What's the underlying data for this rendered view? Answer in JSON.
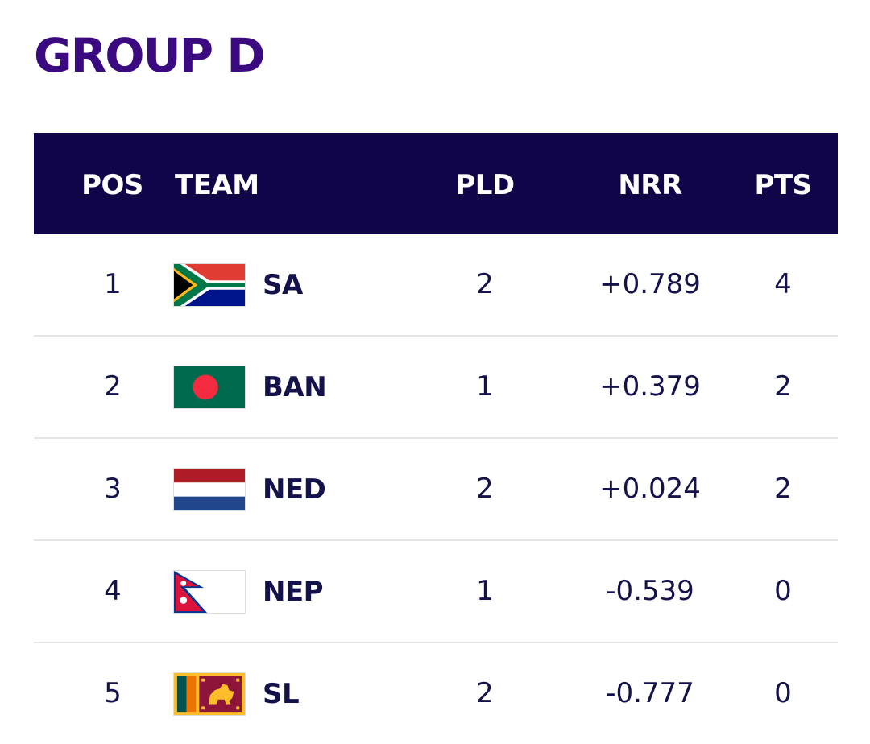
{
  "title": "GROUP D",
  "headers": {
    "pos": "POS",
    "team": "TEAM",
    "pld": "PLD",
    "nrr": "NRR",
    "pts": "PTS"
  },
  "rows": [
    {
      "pos": "1",
      "team": "SA",
      "flag": "south-africa-flag-icon",
      "pld": "2",
      "nrr": "+0.789",
      "pts": "4"
    },
    {
      "pos": "2",
      "team": "BAN",
      "flag": "bangladesh-flag-icon",
      "pld": "1",
      "nrr": "+0.379",
      "pts": "2"
    },
    {
      "pos": "3",
      "team": "NED",
      "flag": "netherlands-flag-icon",
      "pld": "2",
      "nrr": "+0.024",
      "pts": "2"
    },
    {
      "pos": "4",
      "team": "NEP",
      "flag": "nepal-flag-icon",
      "pld": "1",
      "nrr": "-0.539",
      "pts": "0"
    },
    {
      "pos": "5",
      "team": "SL",
      "flag": "sri-lanka-flag-icon",
      "pld": "2",
      "nrr": "-0.777",
      "pts": "0"
    }
  ],
  "colors": {
    "title": "#3b0a80",
    "header_bg": "#11054a",
    "text": "#14124a"
  }
}
